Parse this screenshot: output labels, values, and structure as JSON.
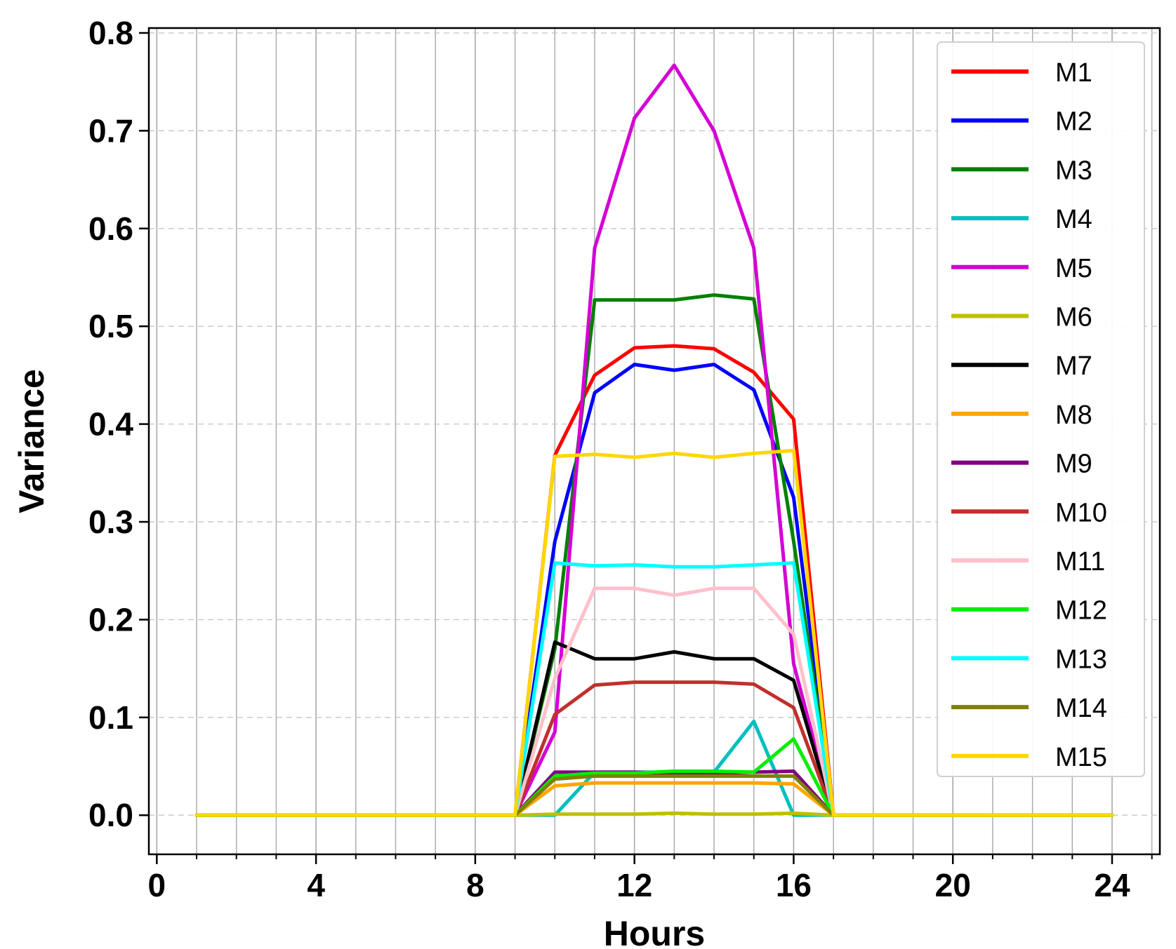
{
  "chart_data": {
    "type": "line",
    "title": "",
    "xlabel": "Hours",
    "ylabel": "Variance",
    "xlim": [
      -0.2,
      25.2
    ],
    "ylim": [
      -0.04,
      0.805
    ],
    "xticks": [
      0,
      4,
      8,
      12,
      16,
      20,
      24
    ],
    "xtick_labels": [
      "0",
      "4",
      "8",
      "12",
      "16",
      "20",
      "24"
    ],
    "yticks": [
      0.0,
      0.1,
      0.2,
      0.3,
      0.4,
      0.5,
      0.6,
      0.7,
      0.8
    ],
    "ytick_labels": [
      "0.0",
      "0.1",
      "0.2",
      "0.3",
      "0.4",
      "0.5",
      "0.6",
      "0.7",
      "0.8"
    ],
    "grid": {
      "x_major": "solid",
      "x_minor": "solid",
      "y": "dashed"
    },
    "legend_position": "top-right",
    "x": [
      1,
      2,
      3,
      4,
      5,
      6,
      7,
      8,
      9,
      10,
      11,
      12,
      13,
      14,
      15,
      16,
      17,
      18,
      19,
      20,
      21,
      22,
      23,
      24
    ],
    "series": [
      {
        "name": "M1",
        "color": "#ff0000",
        "values": [
          0,
          0,
          0,
          0,
          0,
          0,
          0,
          0,
          0,
          0.368,
          0.45,
          0.478,
          0.48,
          0.477,
          0.453,
          0.405,
          0,
          0,
          0,
          0,
          0,
          0,
          0,
          0
        ]
      },
      {
        "name": "M2",
        "color": "#0000ff",
        "values": [
          0,
          0,
          0,
          0,
          0,
          0,
          0,
          0,
          0,
          0.28,
          0.432,
          0.461,
          0.455,
          0.461,
          0.435,
          0.325,
          0,
          0,
          0,
          0,
          0,
          0,
          0,
          0
        ]
      },
      {
        "name": "M3",
        "color": "#008000",
        "values": [
          0,
          0,
          0,
          0,
          0,
          0,
          0,
          0,
          0,
          0.17,
          0.527,
          0.527,
          0.527,
          0.532,
          0.528,
          0.28,
          0,
          0,
          0,
          0,
          0,
          0,
          0,
          0
        ]
      },
      {
        "name": "M4",
        "color": "#00bfbf",
        "values": [
          0,
          0,
          0,
          0,
          0,
          0,
          0,
          0,
          0,
          0,
          0.044,
          0.044,
          0.044,
          0.044,
          0.096,
          0,
          0,
          0,
          0,
          0,
          0,
          0,
          0,
          0
        ]
      },
      {
        "name": "M5",
        "color": "#d400d4",
        "values": [
          0,
          0,
          0,
          0,
          0,
          0,
          0,
          0,
          0,
          0.085,
          0.58,
          0.713,
          0.767,
          0.7,
          0.58,
          0.155,
          0,
          0,
          0,
          0,
          0,
          0,
          0,
          0
        ]
      },
      {
        "name": "M6",
        "color": "#bfbf00",
        "values": [
          0,
          0,
          0,
          0,
          0,
          0,
          0,
          0,
          0,
          0.001,
          0.001,
          0.001,
          0.002,
          0.001,
          0.001,
          0.002,
          0,
          0,
          0,
          0,
          0,
          0,
          0,
          0
        ]
      },
      {
        "name": "M7",
        "color": "#000000",
        "values": [
          0,
          0,
          0,
          0,
          0,
          0,
          0,
          0,
          0,
          0.177,
          0.16,
          0.16,
          0.167,
          0.16,
          0.16,
          0.138,
          0,
          0,
          0,
          0,
          0,
          0,
          0,
          0
        ]
      },
      {
        "name": "M8",
        "color": "#ffa500",
        "values": [
          0,
          0,
          0,
          0,
          0,
          0,
          0,
          0,
          0,
          0.03,
          0.033,
          0.033,
          0.033,
          0.033,
          0.033,
          0.032,
          0,
          0,
          0,
          0,
          0,
          0,
          0,
          0
        ]
      },
      {
        "name": "M9",
        "color": "#800080",
        "values": [
          0,
          0,
          0,
          0,
          0,
          0,
          0,
          0,
          0,
          0.044,
          0.044,
          0.044,
          0.043,
          0.043,
          0.044,
          0.045,
          0,
          0,
          0,
          0,
          0,
          0,
          0,
          0
        ]
      },
      {
        "name": "M10",
        "color": "#c0302c",
        "values": [
          0,
          0,
          0,
          0,
          0,
          0,
          0,
          0,
          0,
          0.103,
          0.133,
          0.136,
          0.136,
          0.136,
          0.134,
          0.11,
          0,
          0,
          0,
          0,
          0,
          0,
          0,
          0
        ]
      },
      {
        "name": "M11",
        "color": "#ffc0cb",
        "values": [
          0,
          0,
          0,
          0,
          0,
          0,
          0,
          0,
          0,
          0.14,
          0.232,
          0.232,
          0.225,
          0.232,
          0.232,
          0.185,
          0,
          0,
          0,
          0,
          0,
          0,
          0,
          0
        ]
      },
      {
        "name": "M12",
        "color": "#00ee00",
        "values": [
          0,
          0,
          0,
          0,
          0,
          0,
          0,
          0,
          0,
          0.04,
          0.043,
          0.043,
          0.045,
          0.045,
          0.044,
          0.078,
          0,
          0,
          0,
          0,
          0,
          0,
          0,
          0
        ]
      },
      {
        "name": "M13",
        "color": "#00ffff",
        "values": [
          0,
          0,
          0,
          0,
          0,
          0,
          0,
          0,
          0,
          0.258,
          0.255,
          0.256,
          0.254,
          0.254,
          0.256,
          0.258,
          0,
          0,
          0,
          0,
          0,
          0,
          0,
          0
        ]
      },
      {
        "name": "M14",
        "color": "#808000",
        "values": [
          0,
          0,
          0,
          0,
          0,
          0,
          0,
          0,
          0,
          0.037,
          0.04,
          0.04,
          0.04,
          0.04,
          0.04,
          0.04,
          0,
          0,
          0,
          0,
          0,
          0,
          0,
          0
        ]
      },
      {
        "name": "M15",
        "color": "#ffd700",
        "values": [
          0,
          0,
          0,
          0,
          0,
          0,
          0,
          0,
          0,
          0.367,
          0.369,
          0.366,
          0.37,
          0.366,
          0.37,
          0.373,
          0,
          0,
          0,
          0,
          0,
          0,
          0,
          0
        ]
      }
    ]
  }
}
